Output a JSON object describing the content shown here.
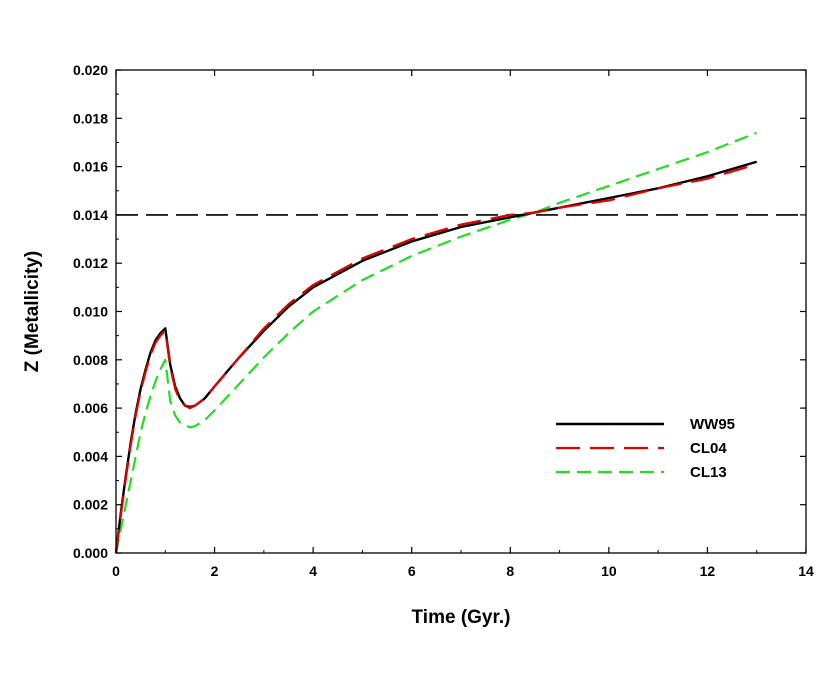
{
  "chart_data": {
    "type": "line",
    "title": "",
    "xlabel": "Time (Gyr.)",
    "ylabel": "Z (Metallicity)",
    "xlim": [
      0,
      14
    ],
    "ylim": [
      0,
      0.02
    ],
    "x_ticks": [
      0,
      2,
      4,
      6,
      8,
      10,
      12,
      14
    ],
    "x_tick_labels": [
      "0",
      "2",
      "4",
      "6",
      "8",
      "10",
      "12",
      "14"
    ],
    "y_ticks": [
      0.0,
      0.002,
      0.004,
      0.006,
      0.008,
      0.01,
      0.012,
      0.014,
      0.016,
      0.018,
      0.02
    ],
    "y_tick_labels": [
      "0.000",
      "0.002",
      "0.004",
      "0.006",
      "0.008",
      "0.010",
      "0.012",
      "0.014",
      "0.016",
      "0.018",
      "0.020"
    ],
    "legend_position": "lower-right",
    "reference_line": {
      "y": 0.014,
      "style": "dashed",
      "color": "#000000"
    },
    "series": [
      {
        "name": "WW95",
        "color": "#000000",
        "style": "solid",
        "x": [
          0,
          0.1,
          0.2,
          0.3,
          0.4,
          0.5,
          0.6,
          0.7,
          0.8,
          0.9,
          1.0,
          1.1,
          1.2,
          1.3,
          1.4,
          1.5,
          1.6,
          1.8,
          2.0,
          2.5,
          3.0,
          3.5,
          4.0,
          5.0,
          6.0,
          7.0,
          8.0,
          8.5,
          9.0,
          10.0,
          11.0,
          12.0,
          13.0
        ],
        "y": [
          0.0,
          0.0017,
          0.0032,
          0.0046,
          0.0058,
          0.0068,
          0.0076,
          0.0083,
          0.0088,
          0.0091,
          0.0093,
          0.0078,
          0.0069,
          0.0064,
          0.0061,
          0.00605,
          0.0061,
          0.0064,
          0.0069,
          0.0081,
          0.0092,
          0.0102,
          0.011,
          0.0121,
          0.0129,
          0.0135,
          0.0139,
          0.0141,
          0.0143,
          0.0147,
          0.0151,
          0.0156,
          0.0162
        ]
      },
      {
        "name": "CL04",
        "color": "#e00000",
        "style": "long-dash",
        "x": [
          0,
          0.1,
          0.2,
          0.3,
          0.4,
          0.5,
          0.6,
          0.7,
          0.8,
          0.9,
          1.0,
          1.1,
          1.2,
          1.3,
          1.4,
          1.5,
          1.6,
          1.8,
          2.0,
          2.5,
          3.0,
          3.5,
          4.0,
          5.0,
          6.0,
          7.0,
          8.0,
          8.5,
          9.0,
          10.0,
          11.0,
          12.0,
          13.0
        ],
        "y": [
          0.0,
          0.0016,
          0.0031,
          0.0045,
          0.0057,
          0.0067,
          0.0075,
          0.0082,
          0.0087,
          0.009,
          0.0092,
          0.0077,
          0.0068,
          0.0063,
          0.0061,
          0.006,
          0.0061,
          0.0064,
          0.0069,
          0.0081,
          0.0093,
          0.0103,
          0.0111,
          0.0122,
          0.013,
          0.0136,
          0.014,
          0.0141,
          0.0143,
          0.0146,
          0.0151,
          0.0155,
          0.0161
        ]
      },
      {
        "name": "CL13",
        "color": "#22dd22",
        "style": "dash",
        "x": [
          0,
          0.1,
          0.2,
          0.3,
          0.4,
          0.5,
          0.6,
          0.7,
          0.8,
          0.9,
          1.0,
          1.1,
          1.2,
          1.3,
          1.4,
          1.5,
          1.6,
          1.8,
          2.0,
          2.5,
          3.0,
          3.5,
          4.0,
          5.0,
          6.0,
          7.0,
          8.0,
          8.5,
          9.0,
          10.0,
          11.0,
          12.0,
          13.0
        ],
        "y": [
          0.0,
          0.001,
          0.002,
          0.003,
          0.004,
          0.005,
          0.0058,
          0.0065,
          0.0071,
          0.0076,
          0.008,
          0.0063,
          0.0057,
          0.0054,
          0.0053,
          0.0052,
          0.00525,
          0.0055,
          0.0059,
          0.007,
          0.0081,
          0.0091,
          0.01,
          0.0113,
          0.0123,
          0.0131,
          0.0138,
          0.0141,
          0.0145,
          0.0152,
          0.0159,
          0.0166,
          0.0174
        ]
      }
    ]
  }
}
